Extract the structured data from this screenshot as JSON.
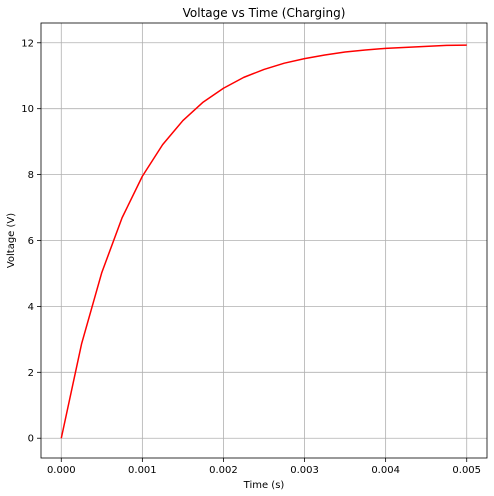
{
  "chart_data": {
    "type": "line",
    "title": "Voltage vs Time (Charging)",
    "xlabel": "Time (s)",
    "ylabel": "Voltage (V)",
    "xlim": [
      -0.00025,
      0.00525
    ],
    "ylim": [
      -0.6,
      12.6
    ],
    "x_ticks": [
      0,
      0.001,
      0.002,
      0.003,
      0.004,
      0.005
    ],
    "x_tick_labels": [
      "0.000",
      "0.001",
      "0.002",
      "0.003",
      "0.004",
      "0.005"
    ],
    "y_ticks": [
      0,
      2,
      4,
      6,
      8,
      10,
      12
    ],
    "y_tick_labels": [
      "0",
      "2",
      "4",
      "6",
      "8",
      "10",
      "12"
    ],
    "grid": true,
    "series": [
      {
        "color": "#ff0000",
        "x": [
          0,
          0.00025,
          0.0005,
          0.00075,
          0.001,
          0.00125,
          0.0015,
          0.00175,
          0.002,
          0.00225,
          0.0025,
          0.00275,
          0.003,
          0.00325,
          0.0035,
          0.00375,
          0.004,
          0.00425,
          0.0045,
          0.00475,
          0.005
        ],
        "y": [
          0,
          2.86,
          5.03,
          6.69,
          7.95,
          8.91,
          9.64,
          10.2,
          10.62,
          10.95,
          11.19,
          11.38,
          11.52,
          11.63,
          11.72,
          11.78,
          11.83,
          11.86,
          11.89,
          11.92,
          11.93
        ]
      }
    ]
  }
}
